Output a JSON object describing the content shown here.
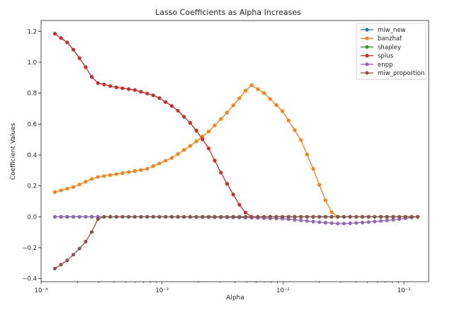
{
  "chart_data": {
    "type": "line",
    "title": "Lasso Coefficients as Alpha Increases",
    "xlabel": "Alpha",
    "ylabel": "Coefficient Values",
    "xscale": "log",
    "xlim": [
      0.0001,
      0.16
    ],
    "ylim": [
      -0.42,
      1.27
    ],
    "xticks": [
      {
        "value": 0.0001,
        "label": "10⁻⁴"
      },
      {
        "value": 0.001,
        "label": "10⁻³"
      },
      {
        "value": 0.01,
        "label": "10⁻²"
      },
      {
        "value": 0.1,
        "label": "10⁻¹"
      }
    ],
    "yticks": [
      {
        "value": -0.4,
        "label": "−0.4"
      },
      {
        "value": -0.2,
        "label": "−0.2"
      },
      {
        "value": 0.0,
        "label": "0.0"
      },
      {
        "value": 0.2,
        "label": "0.2"
      },
      {
        "value": 0.4,
        "label": "0.4"
      },
      {
        "value": 0.6,
        "label": "0.6"
      },
      {
        "value": 0.8,
        "label": "0.8"
      },
      {
        "value": 1.0,
        "label": "1.0"
      },
      {
        "value": 1.2,
        "label": "1.2"
      }
    ],
    "grid": false,
    "legend": "top-right",
    "alpha_range": [
      0.00013,
      0.13
    ],
    "n_points": 60,
    "series": [
      {
        "name": "miw_new",
        "color": "#1f77b4",
        "keypoints": [
          [
            0.00013,
            0.0
          ],
          [
            0.13,
            0.0
          ]
        ]
      },
      {
        "name": "banzhaf",
        "color": "#ff7f0e",
        "keypoints": [
          [
            0.00013,
            0.16
          ],
          [
            0.00019,
            0.195
          ],
          [
            0.00028,
            0.255
          ],
          [
            0.00045,
            0.28
          ],
          [
            0.00075,
            0.31
          ],
          [
            0.0012,
            0.38
          ],
          [
            0.0018,
            0.47
          ],
          [
            0.0025,
            0.56
          ],
          [
            0.0035,
            0.68
          ],
          [
            0.0045,
            0.78
          ],
          [
            0.0054,
            0.855
          ],
          [
            0.007,
            0.8
          ],
          [
            0.01,
            0.68
          ],
          [
            0.014,
            0.5
          ],
          [
            0.018,
            0.3
          ],
          [
            0.022,
            0.12
          ],
          [
            0.026,
            0.01
          ],
          [
            0.027,
            0.0
          ],
          [
            0.13,
            0.0
          ]
        ]
      },
      {
        "name": "shapley",
        "color": "#2ca02c",
        "keypoints": [
          [
            0.00013,
            0.0
          ],
          [
            0.13,
            0.0
          ]
        ]
      },
      {
        "name": "splus",
        "color": "#d62728",
        "keypoints": [
          [
            0.00013,
            1.185
          ],
          [
            0.00017,
            1.12
          ],
          [
            0.00022,
            1.0
          ],
          [
            0.00028,
            0.87
          ],
          [
            0.0004,
            0.84
          ],
          [
            0.0006,
            0.82
          ],
          [
            0.0009,
            0.78
          ],
          [
            0.0013,
            0.7
          ],
          [
            0.0018,
            0.59
          ],
          [
            0.0024,
            0.45
          ],
          [
            0.003,
            0.3
          ],
          [
            0.0037,
            0.17
          ],
          [
            0.0045,
            0.06
          ],
          [
            0.0052,
            0.005
          ],
          [
            0.0054,
            0.0
          ],
          [
            0.13,
            0.0
          ]
        ]
      },
      {
        "name": "enpp",
        "color": "#9467bd",
        "keypoints": [
          [
            0.00013,
            0.0
          ],
          [
            0.001,
            0.0
          ],
          [
            0.005,
            -0.005
          ],
          [
            0.01,
            -0.012
          ],
          [
            0.02,
            -0.035
          ],
          [
            0.03,
            -0.045
          ],
          [
            0.05,
            -0.035
          ],
          [
            0.08,
            -0.02
          ],
          [
            0.13,
            0.0
          ]
        ]
      },
      {
        "name": "miw_proportion",
        "color": "#8c564b",
        "keypoints": [
          [
            0.00013,
            -0.335
          ],
          [
            0.00016,
            -0.29
          ],
          [
            0.0002,
            -0.22
          ],
          [
            0.00024,
            -0.15
          ],
          [
            0.00028,
            -0.06
          ],
          [
            0.0003,
            0.0
          ],
          [
            0.13,
            0.0
          ]
        ]
      }
    ]
  }
}
